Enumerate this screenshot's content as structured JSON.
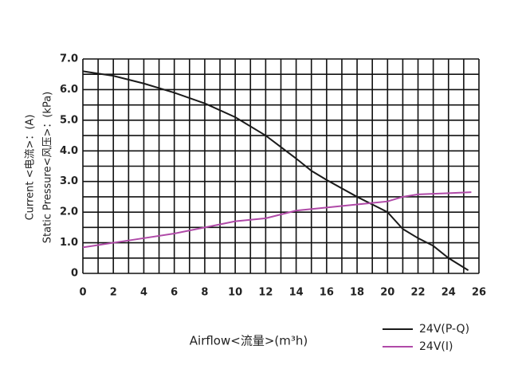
{
  "chart_data": {
    "type": "line",
    "y_label_lines": [
      "Current  <电流>：(A)",
      "Static Pressure<风压>：(kPa)"
    ],
    "x_label": "Airflow<流量>(m³h)",
    "xlim": [
      0,
      26
    ],
    "xticks": [
      0,
      2,
      4,
      6,
      8,
      10,
      12,
      14,
      16,
      18,
      20,
      22,
      24,
      26
    ],
    "ylim": [
      0,
      7
    ],
    "yticks": [
      0,
      {
        "value": 1,
        "label": "1.0"
      },
      {
        "value": 2,
        "label": "2.0"
      },
      {
        "value": 3,
        "label": "3.0"
      },
      {
        "value": 4,
        "label": "4.0"
      },
      {
        "value": 5,
        "label": "5.0"
      },
      {
        "value": 6,
        "label": "6.0"
      },
      {
        "value": 7,
        "label": "7.0"
      }
    ],
    "grid": true,
    "series": [
      {
        "name": "24V(P-Q)",
        "color": "#1a1a1a",
        "x": [
          0,
          2,
          4,
          6,
          8,
          10,
          12,
          14,
          15,
          16,
          18,
          20,
          21,
          22,
          23,
          24,
          25.3
        ],
        "values": [
          6.6,
          6.45,
          6.2,
          5.9,
          5.55,
          5.1,
          4.5,
          3.75,
          3.35,
          3.05,
          2.5,
          2.0,
          1.45,
          1.15,
          0.9,
          0.5,
          0.1
        ]
      },
      {
        "name": "24V(I)",
        "color": "#b04aa8",
        "x": [
          0,
          2,
          4,
          6,
          8,
          10,
          12,
          14,
          16,
          18,
          20,
          21,
          22,
          24,
          25.5
        ],
        "values": [
          0.85,
          1.0,
          1.15,
          1.3,
          1.5,
          1.7,
          1.8,
          2.05,
          2.15,
          2.25,
          2.35,
          2.5,
          2.58,
          2.62,
          2.65
        ]
      }
    ]
  }
}
